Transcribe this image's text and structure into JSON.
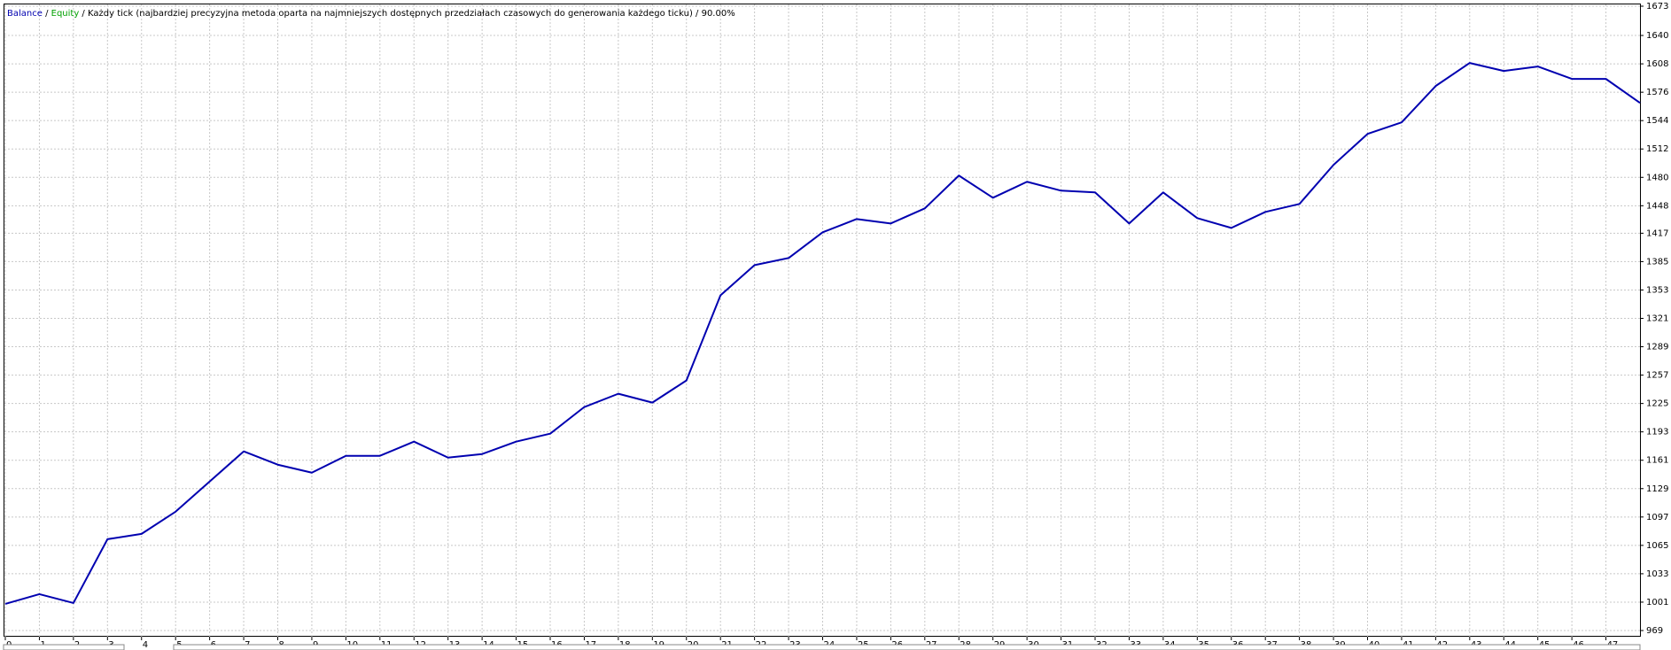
{
  "chart_data": {
    "type": "line",
    "legend_balance": "Balance",
    "legend_equity": "Equity",
    "equity_color": "#00a000",
    "subtitle": "Każdy tick (najbardziej precyzyjna metoda oparta na najmniejszych dostępnych przedziałach czasowych do generowania każdego ticku)",
    "quality": "90.00%",
    "x": [
      0,
      1,
      2,
      3,
      4,
      5,
      6,
      7,
      8,
      9,
      10,
      11,
      12,
      13,
      14,
      15,
      16,
      17,
      18,
      19,
      20,
      21,
      22,
      23,
      24,
      25,
      26,
      27,
      28,
      29,
      30,
      31,
      32,
      33,
      34,
      35,
      36,
      37,
      38,
      39,
      40,
      41,
      42,
      43,
      44,
      45,
      46,
      47,
      48
    ],
    "series": [
      {
        "name": "Balance",
        "color": "#0000b0",
        "values": [
          999,
          1010,
          1000,
          1072,
          1078,
          1103,
          1137,
          1171,
          1156,
          1147,
          1166,
          1166,
          1182,
          1164,
          1168,
          1182,
          1191,
          1221,
          1236,
          1226,
          1251,
          1347,
          1381,
          1389,
          1418,
          1433,
          1428,
          1445,
          1482,
          1457,
          1475,
          1465,
          1463,
          1428,
          1463,
          1434,
          1423,
          1441,
          1450,
          1494,
          1529,
          1542,
          1583,
          1609,
          1600,
          1605,
          1591,
          1591,
          1564
        ]
      }
    ],
    "xlim": [
      0,
      48
    ],
    "xticks": [
      0,
      1,
      2,
      3,
      4,
      5,
      6,
      7,
      8,
      9,
      10,
      11,
      12,
      13,
      14,
      15,
      16,
      17,
      18,
      19,
      20,
      21,
      22,
      23,
      24,
      25,
      26,
      27,
      28,
      29,
      30,
      31,
      32,
      33,
      34,
      35,
      36,
      37,
      38,
      39,
      40,
      41,
      42,
      43,
      44,
      45,
      46,
      47
    ],
    "ylim": [
      969,
      1673
    ],
    "yticks": [
      969,
      1001,
      1033,
      1065,
      1097,
      1129,
      1161,
      1193,
      1225,
      1257,
      1289,
      1321,
      1353,
      1385,
      1417,
      1448,
      1480,
      1512,
      1544,
      1576,
      1608,
      1640,
      1673
    ],
    "grid": true
  }
}
